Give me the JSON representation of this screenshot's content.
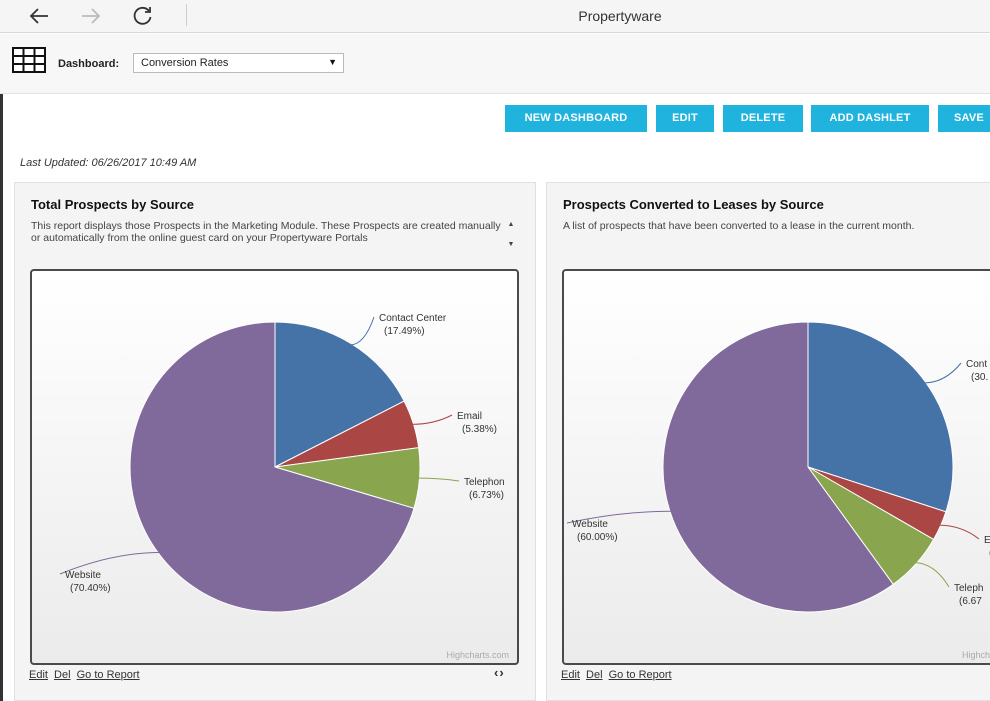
{
  "browser": {
    "title": "Propertyware",
    "icons": [
      "back-arrow-icon",
      "forward-arrow-icon",
      "refresh-icon"
    ]
  },
  "dashboard": {
    "label": "Dashboard:",
    "selected": "Conversion Rates",
    "caret": "▼"
  },
  "actions": {
    "new_dashboard": "NEW DASHBOARD",
    "edit": "EDIT",
    "delete": "DELETE",
    "add_dashlet": "ADD DASHLET",
    "save": "SAVE"
  },
  "last_updated": "Last Updated: 06/26/2017 10:49 AM",
  "panels": [
    {
      "title": "Total Prospects by Source",
      "description": "This report displays those Prospects in the Marketing Module. These Prospects are created manually or automatically from the online guest card on your Propertyware Portals",
      "credit": "Highcharts.com",
      "links": {
        "edit": "Edit",
        "del": "Del",
        "go": "Go to Report"
      },
      "pager": "‹›"
    },
    {
      "title": "Prospects Converted to Leases by Source",
      "description": "A list of prospects that have been converted to a lease in the current month.",
      "credit": "Highcharts.com",
      "links": {
        "edit": "Edit",
        "del": "Del",
        "go": "Go to Report"
      }
    }
  ],
  "chart_data": [
    {
      "type": "pie",
      "title": "Total Prospects by Source",
      "categories": [
        "Contact Center",
        "Email",
        "Telephone",
        "Website"
      ],
      "values": [
        17.49,
        5.38,
        6.73,
        70.4
      ],
      "labels": [
        "(17.49%)",
        "(5.38%)",
        "(6.73%)",
        "(70.40%)"
      ],
      "display_names": [
        "Contact Center",
        "Email",
        "Telephon",
        "Website"
      ],
      "colors": [
        "#4572a7",
        "#aa4643",
        "#89a54e",
        "#80699b"
      ]
    },
    {
      "type": "pie",
      "title": "Prospects Converted to Leases by Source",
      "categories": [
        "Contact Center",
        "Email",
        "Telephone",
        "Website"
      ],
      "values": [
        30.0,
        3.33,
        6.67,
        60.0
      ],
      "labels": [
        "(30.",
        "(",
        "(6.67",
        "(60.00%)"
      ],
      "display_names": [
        "Cont",
        "E",
        "Teleph",
        "Website"
      ],
      "colors": [
        "#4572a7",
        "#aa4643",
        "#89a54e",
        "#80699b"
      ]
    }
  ],
  "accent": "#1fb3de"
}
